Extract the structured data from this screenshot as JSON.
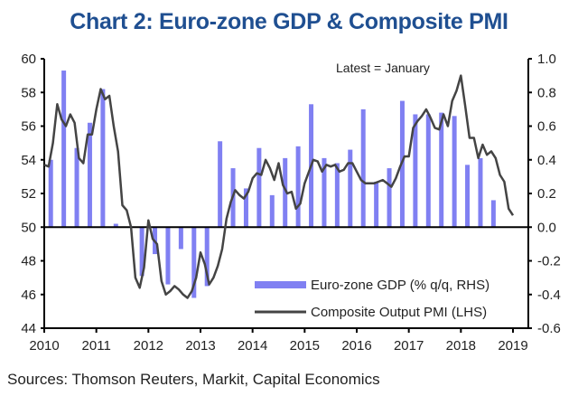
{
  "chart_data": {
    "type": "bar+line",
    "title": "Chart 2: Euro-zone GDP & Composite PMI",
    "source": "Sources: Thomson Reuters, Markit, Capital Economics",
    "annotation": "Latest = January",
    "x_ticks": [
      "2010",
      "2011",
      "2012",
      "2013",
      "2014",
      "2015",
      "2016",
      "2017",
      "2018",
      "2019"
    ],
    "y_left": {
      "label": "Composite Output PMI (LHS)",
      "range": [
        44,
        60
      ],
      "ticks": [
        "44",
        "46",
        "48",
        "50",
        "52",
        "54",
        "56",
        "58",
        "60"
      ]
    },
    "y_right": {
      "label": "Euro-zone GDP (% q/q, RHS)",
      "range": [
        -0.6,
        1.0
      ],
      "ticks": [
        "-0.6",
        "-0.4",
        "-0.2",
        "0.0",
        "0.2",
        "0.4",
        "0.6",
        "0.8",
        "1.0"
      ]
    },
    "grid": false,
    "legend_position": "bottom-right",
    "series": [
      {
        "name": "Euro-zone GDP (% q/q, RHS)",
        "type": "bar",
        "axis": "right",
        "color": "#8080f2",
        "frequency": "quarterly",
        "start": "2010Q1",
        "values": [
          0.4,
          0.93,
          0.47,
          0.62,
          0.82,
          0.02,
          0.0,
          -0.29,
          -0.16,
          -0.34,
          -0.13,
          -0.42,
          -0.35,
          0.51,
          0.35,
          0.23,
          0.47,
          0.19,
          0.41,
          0.48,
          0.73,
          0.41,
          0.38,
          0.46,
          0.7,
          0.27,
          0.35,
          0.75,
          0.67,
          0.67,
          0.68,
          0.66,
          0.37,
          0.41,
          0.16
        ]
      },
      {
        "name": "Composite Output PMI (LHS)",
        "type": "line",
        "axis": "left",
        "color": "#444444",
        "frequency": "monthly",
        "start": "2010-01",
        "values": [
          53.7,
          53.6,
          55.0,
          57.3,
          56.4,
          56.0,
          56.7,
          56.2,
          54.1,
          53.8,
          55.5,
          55.5,
          57.0,
          58.2,
          57.6,
          57.8,
          56.0,
          54.5,
          51.3,
          51.0,
          50.0,
          47.0,
          46.4,
          47.6,
          50.4,
          49.3,
          49.0,
          46.8,
          46.0,
          46.2,
          46.5,
          46.3,
          46.0,
          45.8,
          46.2,
          47.0,
          48.5,
          47.8,
          46.6,
          47.0,
          47.7,
          48.7,
          50.5,
          51.5,
          52.2,
          51.9,
          51.7,
          52.1,
          52.9,
          53.2,
          53.1,
          54.0,
          53.5,
          52.8,
          53.8,
          52.5,
          52.0,
          52.1,
          51.1,
          51.4,
          52.6,
          53.3,
          54.0,
          53.9,
          53.3,
          53.7,
          53.6,
          53.7,
          53.3,
          53.4,
          53.8,
          53.8,
          53.3,
          52.8,
          52.6,
          52.6,
          52.6,
          52.7,
          52.8,
          52.6,
          52.4,
          52.9,
          53.6,
          54.2,
          54.2,
          55.9,
          56.3,
          56.6,
          57.0,
          56.5,
          55.9,
          55.8,
          56.7,
          56.0,
          57.5,
          58.1,
          59.0,
          57.2,
          55.3,
          55.3,
          54.1,
          54.9,
          54.3,
          54.5,
          54.1,
          53.1,
          52.7,
          51.1,
          50.7
        ]
      }
    ]
  }
}
